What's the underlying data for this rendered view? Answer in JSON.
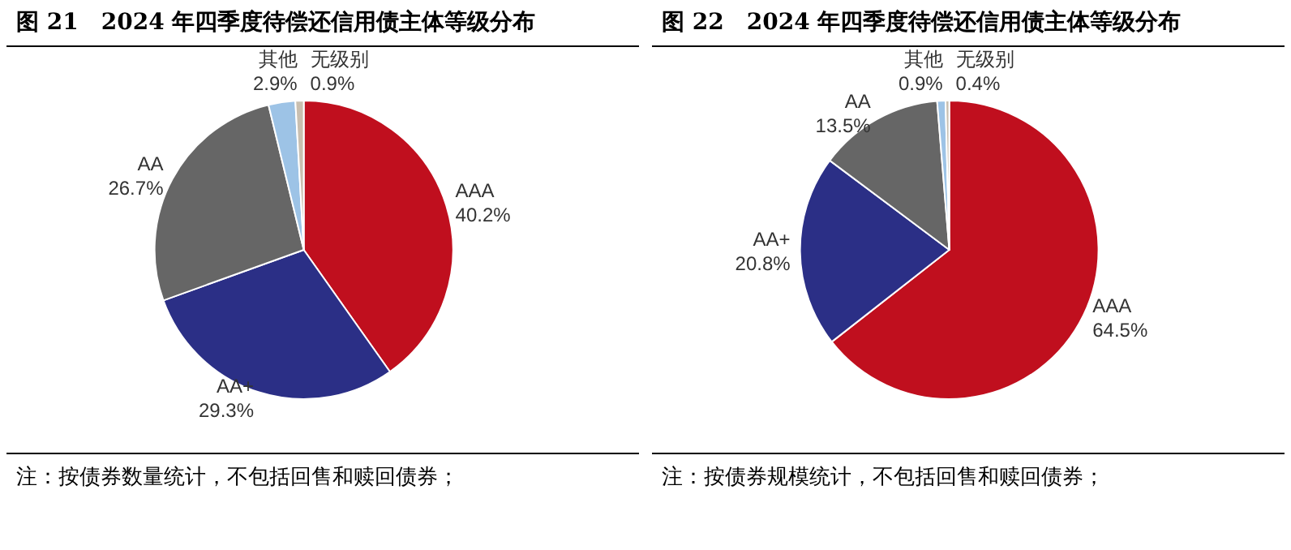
{
  "chart_data": [
    {
      "type": "pie",
      "title": "图 21　2024 年四季度待偿还信用债主体等级分布",
      "categories": [
        "AAA",
        "AA+",
        "AA",
        "其他",
        "无级别"
      ],
      "values": [
        40.2,
        29.3,
        26.7,
        2.9,
        0.9
      ],
      "value_labels": [
        "40.2%",
        "29.3%",
        "26.7%",
        "2.9%",
        "0.9%"
      ],
      "colors": [
        "#c00f1e",
        "#2b2f86",
        "#666666",
        "#9dc3e6",
        "#c9bfb0"
      ],
      "annotations": [
        "注：按债券数量统计，不包括回售和赎回债券；"
      ]
    },
    {
      "type": "pie",
      "title": "图 22　2024 年四季度待偿还信用债主体等级分布",
      "categories": [
        "AAA",
        "AA+",
        "AA",
        "其他",
        "无级别"
      ],
      "values": [
        64.5,
        20.8,
        13.5,
        0.9,
        0.4
      ],
      "value_labels": [
        "64.5%",
        "20.8%",
        "13.5%",
        "0.9%",
        "0.4%"
      ],
      "colors": [
        "#c00f1e",
        "#2b2f86",
        "#666666",
        "#9dc3e6",
        "#c9bfb0"
      ],
      "annotations": [
        "注：按债券规模统计，不包括回售和赎回债券；"
      ]
    }
  ]
}
